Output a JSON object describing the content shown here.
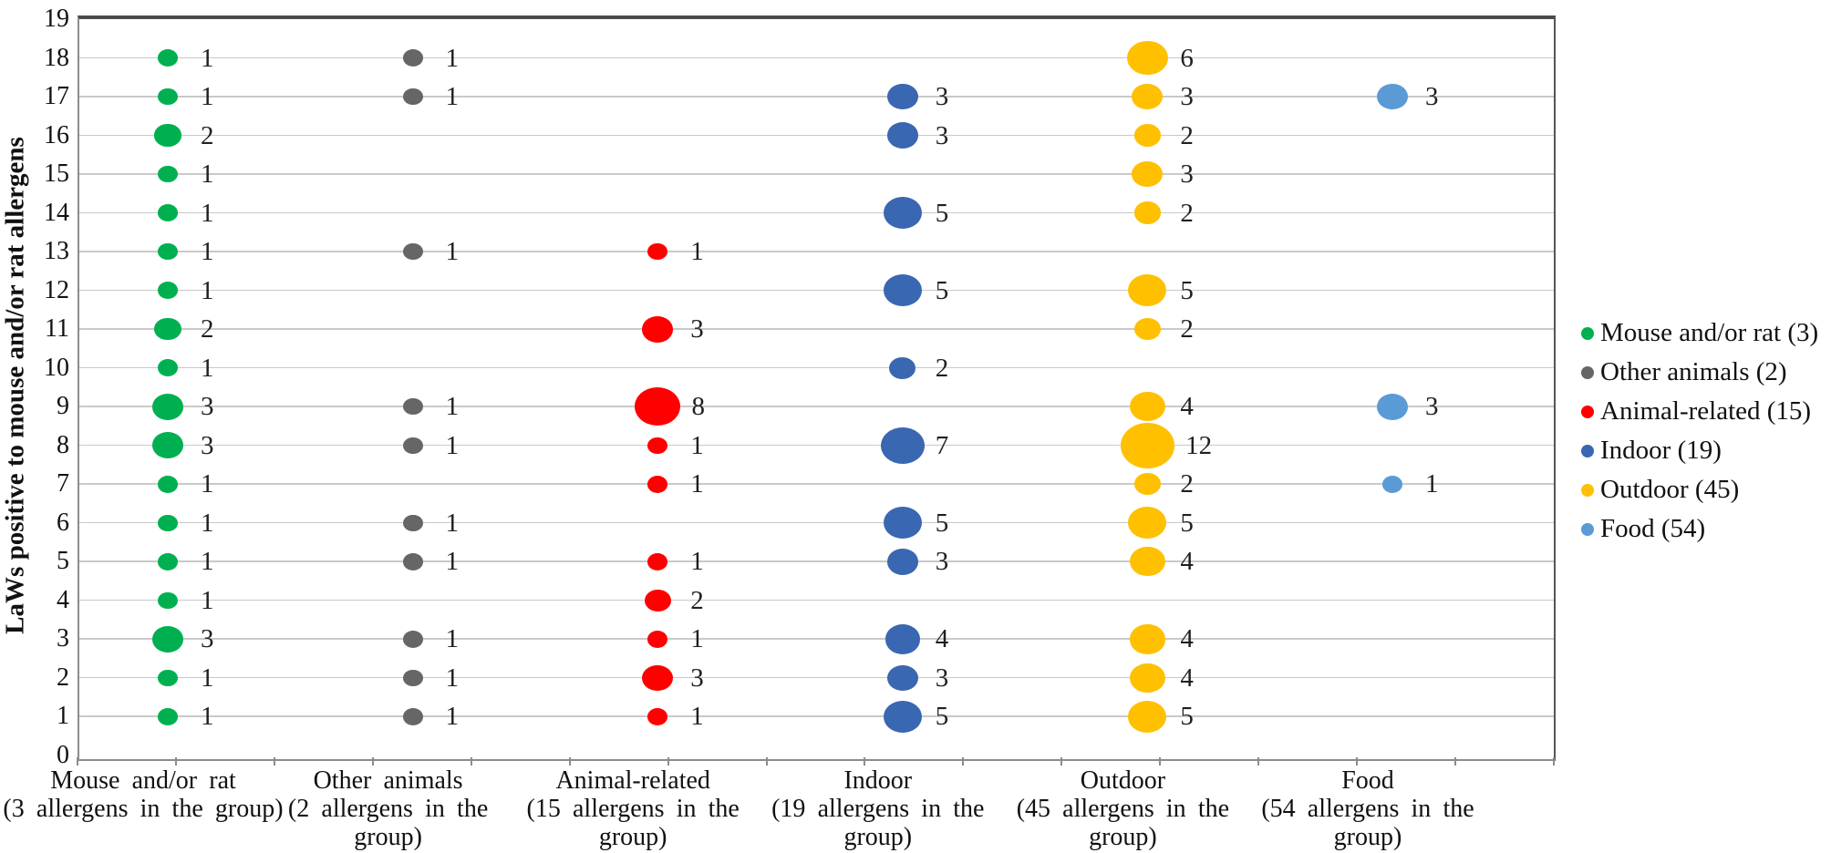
{
  "chart_data": {
    "type": "bubble",
    "title": "",
    "xlabel": "",
    "ylabel": "LaWs positive to mouse and/or rat allergens",
    "ylim": [
      0,
      19
    ],
    "ytick_step": 1,
    "grid": true,
    "legend_position": "right",
    "gridline_color": "#c9c9c9",
    "series": [
      {
        "name": "Mouse and/or rat (3)",
        "color": "#00B050",
        "x_label_lines": [
          "Mouse and/or rat",
          "(3 allergens in the group)"
        ],
        "points": [
          [
            18,
            1
          ],
          [
            17,
            1
          ],
          [
            16,
            2
          ],
          [
            15,
            1
          ],
          [
            14,
            1
          ],
          [
            13,
            1
          ],
          [
            12,
            1
          ],
          [
            11,
            2
          ],
          [
            10,
            1
          ],
          [
            9,
            3
          ],
          [
            8,
            3
          ],
          [
            7,
            1
          ],
          [
            6,
            1
          ],
          [
            5,
            1
          ],
          [
            4,
            1
          ],
          [
            3,
            3
          ],
          [
            2,
            1
          ],
          [
            1,
            1
          ]
        ]
      },
      {
        "name": "Other animals (2)",
        "color": "#666666",
        "x_label_lines": [
          "Other animals",
          "(2 allergens in the",
          "group)"
        ],
        "points": [
          [
            18,
            1
          ],
          [
            17,
            1
          ],
          [
            13,
            1
          ],
          [
            9,
            1
          ],
          [
            8,
            1
          ],
          [
            6,
            1
          ],
          [
            5,
            1
          ],
          [
            3,
            1
          ],
          [
            2,
            1
          ],
          [
            1,
            1
          ]
        ]
      },
      {
        "name": "Animal-related (15)",
        "color": "#FF0000",
        "x_label_lines": [
          "Animal-related",
          "(15 allergens in the",
          "group)"
        ],
        "points": [
          [
            13,
            1
          ],
          [
            11,
            3
          ],
          [
            9,
            8
          ],
          [
            8,
            1
          ],
          [
            7,
            1
          ],
          [
            5,
            1
          ],
          [
            4,
            2
          ],
          [
            3,
            1
          ],
          [
            2,
            3
          ],
          [
            1,
            1
          ]
        ]
      },
      {
        "name": "Indoor (19)",
        "color": "#3A67B1",
        "x_label_lines": [
          "Indoor",
          "(19 allergens in the",
          "group)"
        ],
        "points": [
          [
            17,
            3
          ],
          [
            16,
            3
          ],
          [
            14,
            5
          ],
          [
            12,
            5
          ],
          [
            10,
            2
          ],
          [
            8,
            7
          ],
          [
            6,
            5
          ],
          [
            5,
            3
          ],
          [
            3,
            4
          ],
          [
            2,
            3
          ],
          [
            1,
            5
          ]
        ]
      },
      {
        "name": "Outdoor (45)",
        "color": "#FFC000",
        "x_label_lines": [
          "Outdoor",
          "(45 allergens in the",
          "group)"
        ],
        "points": [
          [
            18,
            6
          ],
          [
            17,
            3
          ],
          [
            16,
            2
          ],
          [
            15,
            3
          ],
          [
            14,
            2
          ],
          [
            12,
            5
          ],
          [
            11,
            2
          ],
          [
            9,
            4
          ],
          [
            8,
            12
          ],
          [
            7,
            2
          ],
          [
            6,
            5
          ],
          [
            5,
            4
          ],
          [
            3,
            4
          ],
          [
            2,
            4
          ],
          [
            1,
            5
          ]
        ]
      },
      {
        "name": "Food (54)",
        "color": "#5B9BD5",
        "x_label_lines": [
          "Food",
          "(54 allergens in the",
          "group)"
        ],
        "points": [
          [
            17,
            3
          ],
          [
            9,
            3
          ],
          [
            7,
            1
          ]
        ]
      }
    ]
  }
}
